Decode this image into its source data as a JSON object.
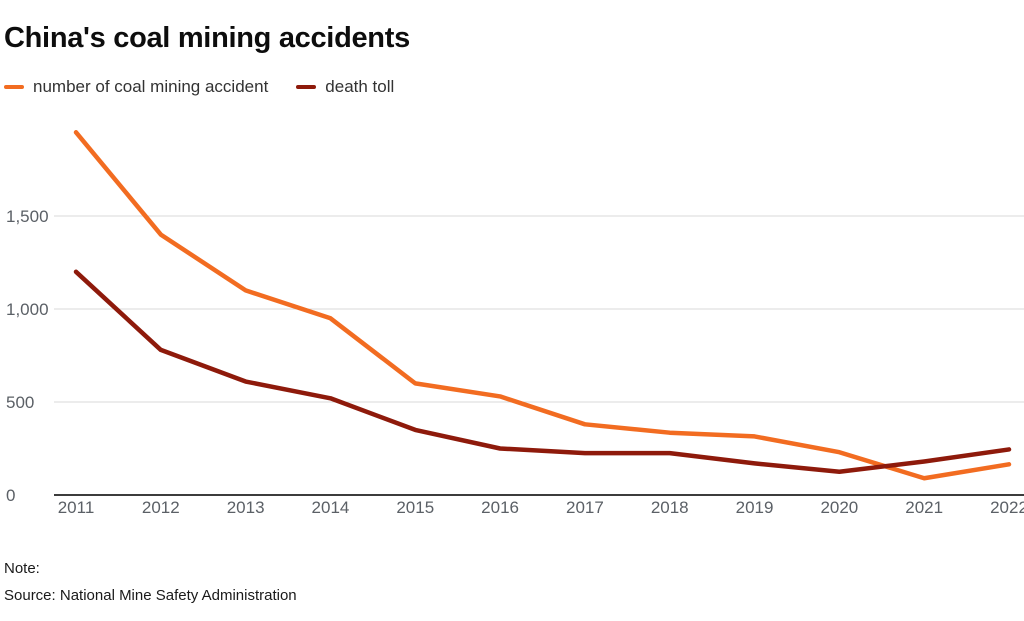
{
  "title": "China's coal mining accidents",
  "legend": [
    {
      "label": "number of coal mining accident",
      "color": "#f26c21"
    },
    {
      "label": "death toll",
      "color": "#8e1a0b"
    }
  ],
  "chart_data": {
    "type": "line",
    "title": "China's coal mining accidents",
    "x": [
      2011,
      2012,
      2013,
      2014,
      2015,
      2016,
      2017,
      2018,
      2019,
      2020,
      2021,
      2022
    ],
    "series": [
      {
        "name": "number of coal mining accident",
        "color": "#f26c21",
        "values": [
          1950,
          1400,
          1100,
          950,
          600,
          530,
          380,
          335,
          315,
          230,
          90,
          165
        ]
      },
      {
        "name": "death toll",
        "color": "#8e1a0b",
        "values": [
          1200,
          780,
          610,
          520,
          350,
          250,
          225,
          225,
          170,
          125,
          180,
          245
        ]
      }
    ],
    "xlabel": "",
    "ylabel": "",
    "ylim": [
      0,
      2000
    ],
    "y_ticks": [
      {
        "value": 0,
        "label": "0"
      },
      {
        "value": 500,
        "label": "500"
      },
      {
        "value": 1000,
        "label": "1,000"
      },
      {
        "value": 1500,
        "label": "1,500"
      }
    ],
    "grid": true,
    "legend_position": "top-left"
  },
  "footer": {
    "note_label": "Note:",
    "source": "Source: National Mine Safety Administration"
  },
  "colors": {
    "accidents_line": "#f26c21",
    "death_toll_line": "#8e1a0b",
    "gridline": "#d9d9d9",
    "axis": "#3c3c3c",
    "tick_label": "#5b6066"
  }
}
